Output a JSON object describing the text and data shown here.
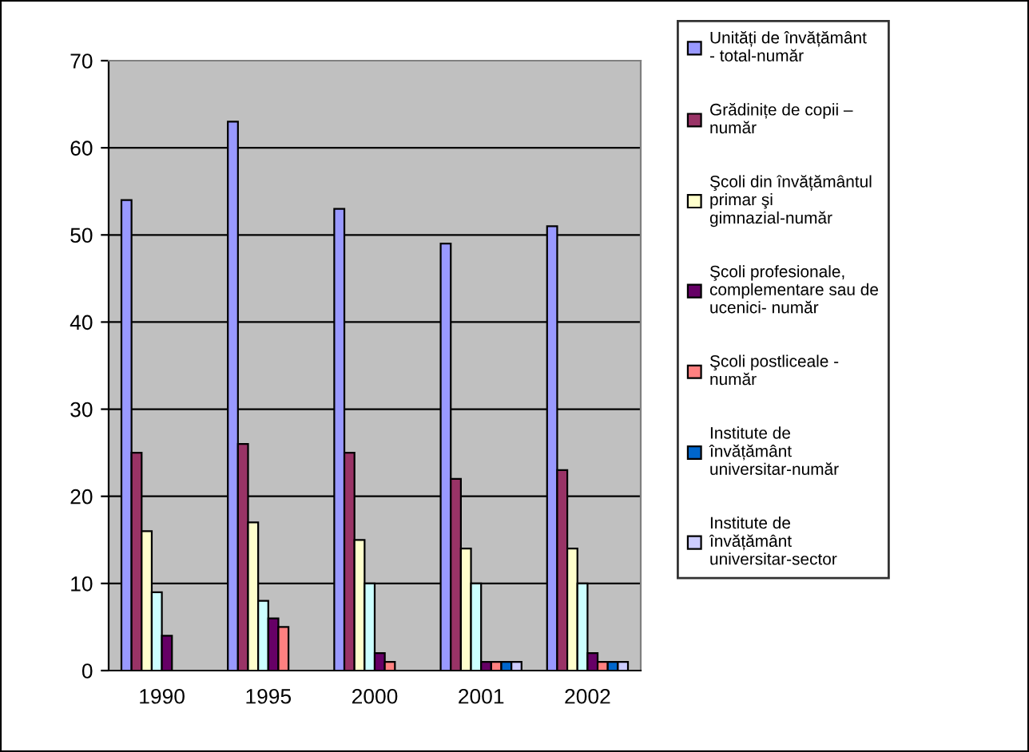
{
  "chart_data": {
    "type": "bar",
    "categories": [
      "1990",
      "1995",
      "2000",
      "2001",
      "2002"
    ],
    "series": [
      {
        "name": "Unități de învățământ - total-număr",
        "color": "#9999ff",
        "values": [
          54,
          63,
          53,
          49,
          51
        ]
      },
      {
        "name": "Grădinițe de copii – număr",
        "color": "#993366",
        "values": [
          25,
          26,
          25,
          22,
          23
        ]
      },
      {
        "name": "Şcoli din învățământul primar şi gimnazial-număr",
        "color": "#ffffcc",
        "values": [
          16,
          17,
          15,
          14,
          14
        ]
      },
      {
        "color": "#ccffff",
        "values": [
          9,
          8,
          10,
          10,
          10
        ]
      },
      {
        "name": "Şcoli profesionale, complementare sau de ucenici- număr",
        "color": "#660066",
        "values": [
          4,
          6,
          2,
          1,
          2
        ]
      },
      {
        "name": "Şcoli postliceale - număr",
        "color": "#ff8080",
        "values": [
          null,
          5,
          1,
          1,
          1
        ]
      },
      {
        "name": "Institute de învățământ universitar-număr",
        "color": "#0066cc",
        "values": [
          null,
          null,
          null,
          1,
          1
        ]
      },
      {
        "name": "Institute de învățământ universitar-sector",
        "color": "#ccccff",
        "values": [
          null,
          null,
          null,
          1,
          1
        ]
      }
    ],
    "ylim": [
      0,
      70
    ],
    "yticks": [
      0,
      10,
      20,
      30,
      40,
      50,
      60,
      70
    ],
    "grid": "y",
    "legend": "right"
  }
}
